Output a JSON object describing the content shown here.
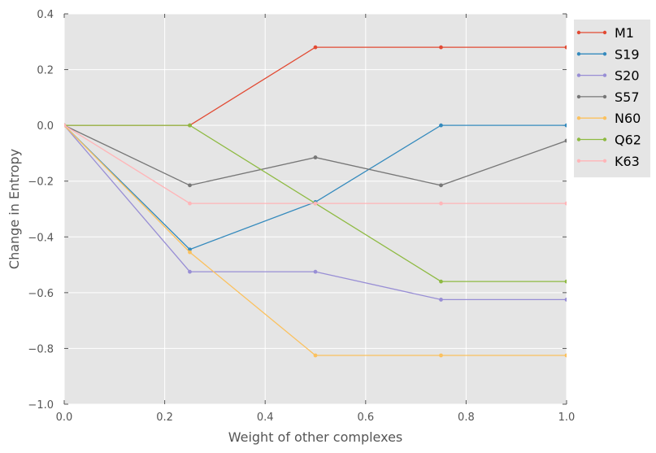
{
  "chart_data": {
    "type": "line",
    "title": "",
    "xlabel": "Weight of other complexes",
    "ylabel": "Change in Entropy",
    "xlim": [
      0.0,
      1.0
    ],
    "ylim": [
      -1.0,
      0.4
    ],
    "xticks": [
      0.0,
      0.2,
      0.4,
      0.6,
      0.8,
      1.0
    ],
    "xtick_labels": [
      "0.0",
      "0.2",
      "0.4",
      "0.6",
      "0.8",
      "1.0"
    ],
    "yticks": [
      -1.0,
      -0.8,
      -0.6,
      -0.4,
      -0.2,
      0.0,
      0.2,
      0.4
    ],
    "ytick_labels": [
      "−1.0",
      "−0.8",
      "−0.6",
      "−0.4",
      "−0.2",
      "0.0",
      "0.2",
      "0.4"
    ],
    "grid": true,
    "background": "#e5e5e5",
    "legend_position": "outside-right-top",
    "x": [
      0.0,
      0.25,
      0.5,
      0.75,
      1.0
    ],
    "series": [
      {
        "name": "M1",
        "color": "#e24a33",
        "values": [
          0.0,
          0.0,
          0.28,
          0.28,
          0.28
        ]
      },
      {
        "name": "S19",
        "color": "#348abd",
        "values": [
          0.0,
          -0.445,
          -0.275,
          0.0,
          0.0
        ]
      },
      {
        "name": "S20",
        "color": "#988ed5",
        "values": [
          0.0,
          -0.525,
          -0.525,
          -0.625,
          -0.625
        ]
      },
      {
        "name": "S57",
        "color": "#777777",
        "values": [
          0.0,
          -0.215,
          -0.115,
          -0.215,
          -0.055
        ]
      },
      {
        "name": "N60",
        "color": "#fbc15e",
        "values": [
          0.0,
          -0.455,
          -0.825,
          -0.825,
          -0.825
        ]
      },
      {
        "name": "Q62",
        "color": "#8eba42",
        "values": [
          0.0,
          0.0,
          -0.28,
          -0.56,
          -0.56
        ]
      },
      {
        "name": "K63",
        "color": "#ffb5b8",
        "values": [
          0.0,
          -0.28,
          -0.28,
          -0.28,
          -0.28
        ]
      }
    ]
  }
}
